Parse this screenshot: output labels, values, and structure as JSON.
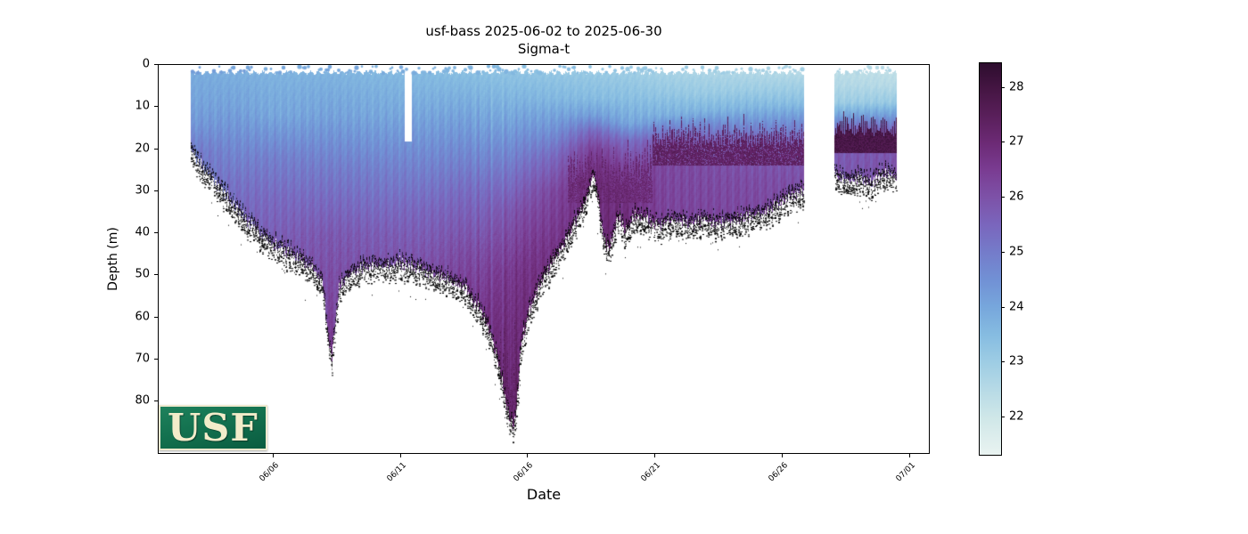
{
  "title": {
    "line1": "usf-bass 2025-06-02 to 2025-06-30",
    "line2": "Sigma-t"
  },
  "axes": {
    "xlabel": "Date",
    "ylabel": "Depth (m)",
    "x_ticks": [
      {
        "day": 4,
        "label": "06/06"
      },
      {
        "day": 9,
        "label": "06/11"
      },
      {
        "day": 14,
        "label": "06/16"
      },
      {
        "day": 19,
        "label": "06/21"
      },
      {
        "day": 24,
        "label": "06/26"
      },
      {
        "day": 29,
        "label": "07/01"
      }
    ],
    "y_ticks": [
      {
        "m": 0,
        "label": "0"
      },
      {
        "m": 10,
        "label": "10"
      },
      {
        "m": 20,
        "label": "20"
      },
      {
        "m": 30,
        "label": "30"
      },
      {
        "m": 40,
        "label": "40"
      },
      {
        "m": 50,
        "label": "50"
      },
      {
        "m": 60,
        "label": "60"
      },
      {
        "m": 70,
        "label": "70"
      },
      {
        "m": 80,
        "label": "80"
      }
    ],
    "depth_axis_max_m": 92.7
  },
  "colorbar": {
    "range": [
      21.32,
      28.45
    ],
    "ticks": [
      {
        "v": 22,
        "label": "22"
      },
      {
        "v": 23,
        "label": "23"
      },
      {
        "v": 24,
        "label": "24"
      },
      {
        "v": 25,
        "label": "25"
      },
      {
        "v": 26,
        "label": "26"
      },
      {
        "v": 27,
        "label": "27"
      },
      {
        "v": 28,
        "label": "28"
      }
    ],
    "stops": [
      [
        21.32,
        "#e9f3f1"
      ],
      [
        22.0,
        "#cfe7e8"
      ],
      [
        22.5,
        "#b7dae6"
      ],
      [
        23.0,
        "#9ecde4"
      ],
      [
        23.5,
        "#86bce1"
      ],
      [
        24.0,
        "#77a7dc"
      ],
      [
        24.5,
        "#7191d5"
      ],
      [
        25.0,
        "#747cca"
      ],
      [
        25.5,
        "#7a66bd"
      ],
      [
        26.0,
        "#7d52a8"
      ],
      [
        26.5,
        "#7a3c92"
      ],
      [
        27.0,
        "#6c2a75"
      ],
      [
        27.5,
        "#591f5a"
      ],
      [
        28.0,
        "#441542"
      ],
      [
        28.45,
        "#2d0d2e"
      ]
    ]
  },
  "logo": {
    "text": "USF"
  },
  "chart_data": {
    "type": "scatter",
    "platform": "usf-bass",
    "variable": "Sigma-t",
    "date_start": "2025-06-02",
    "date_end": "2025-06-30",
    "day0_date": "06/02",
    "data_day_start": 0.75,
    "data_day_end": 28.5,
    "surface_top_m": 1.9,
    "gaps_full_days": [
      [
        24.85,
        26.05
      ]
    ],
    "gaps_upper_days": [
      {
        "from": 9.18,
        "to": 9.44,
        "min_depth_m": 18.3
      }
    ],
    "bathymetry_day_depth": [
      [
        0.75,
        20
      ],
      [
        1.2,
        24
      ],
      [
        2,
        30
      ],
      [
        2.8,
        36
      ],
      [
        3.6,
        41
      ],
      [
        4.4,
        44
      ],
      [
        5,
        46
      ],
      [
        5.6,
        49
      ],
      [
        5.95,
        52
      ],
      [
        6.15,
        64
      ],
      [
        6.3,
        70
      ],
      [
        6.45,
        62
      ],
      [
        6.6,
        53
      ],
      [
        7,
        50
      ],
      [
        7.6,
        48
      ],
      [
        8.4,
        48
      ],
      [
        9,
        47
      ],
      [
        9.44,
        48
      ],
      [
        10,
        49
      ],
      [
        10.8,
        51
      ],
      [
        11.5,
        53
      ],
      [
        12,
        57
      ],
      [
        12.5,
        63
      ],
      [
        12.9,
        72
      ],
      [
        13.2,
        82
      ],
      [
        13.45,
        86
      ],
      [
        13.6,
        80
      ],
      [
        13.75,
        66
      ],
      [
        14.1,
        58
      ],
      [
        14.5,
        52
      ],
      [
        15,
        47
      ],
      [
        15.5,
        42
      ],
      [
        16,
        36
      ],
      [
        16.35,
        31
      ],
      [
        16.6,
        26
      ],
      [
        16.8,
        33
      ],
      [
        17,
        42
      ],
      [
        17.25,
        44
      ],
      [
        17.45,
        38
      ],
      [
        17.65,
        36
      ],
      [
        17.85,
        40
      ],
      [
        18.2,
        36
      ],
      [
        18.6,
        37
      ],
      [
        19.2,
        38
      ],
      [
        19.8,
        37
      ],
      [
        20.4,
        38
      ],
      [
        21,
        37
      ],
      [
        21.6,
        38
      ],
      [
        22.2,
        37
      ],
      [
        22.8,
        36
      ],
      [
        23.4,
        35
      ],
      [
        24,
        33
      ],
      [
        24.5,
        31
      ],
      [
        24.85,
        30
      ],
      [
        26.05,
        26
      ],
      [
        26.5,
        28
      ],
      [
        27,
        27
      ],
      [
        27.5,
        28
      ],
      [
        28,
        26
      ],
      [
        28.5,
        27
      ]
    ],
    "sigma_profiles": [
      [
        0.75,
        [
          [
            2,
            23.9
          ],
          [
            8,
            24.05
          ],
          [
            14,
            24.35
          ],
          [
            18,
            24.8
          ],
          [
            21,
            25.1
          ]
        ]
      ],
      [
        2.5,
        [
          [
            2,
            23.8
          ],
          [
            10,
            24.1
          ],
          [
            20,
            24.7
          ],
          [
            28,
            25.2
          ],
          [
            36,
            25.5
          ]
        ]
      ],
      [
        4,
        [
          [
            2,
            23.7
          ],
          [
            12,
            24.0
          ],
          [
            22,
            24.9
          ],
          [
            32,
            25.4
          ],
          [
            44,
            25.8
          ]
        ]
      ],
      [
        6.2,
        [
          [
            2,
            23.7
          ],
          [
            12,
            24.1
          ],
          [
            25,
            25.0
          ],
          [
            40,
            25.8
          ],
          [
            55,
            26.2
          ],
          [
            70,
            26.5
          ]
        ]
      ],
      [
        8,
        [
          [
            2,
            23.6
          ],
          [
            12,
            24.0
          ],
          [
            25,
            24.9
          ],
          [
            40,
            25.7
          ],
          [
            49,
            26.0
          ]
        ]
      ],
      [
        10,
        [
          [
            2,
            23.5
          ],
          [
            10,
            23.9
          ],
          [
            22,
            24.7
          ],
          [
            35,
            25.5
          ],
          [
            50,
            26.1
          ]
        ]
      ],
      [
        12,
        [
          [
            2,
            23.4
          ],
          [
            8,
            23.8
          ],
          [
            18,
            24.5
          ],
          [
            30,
            25.4
          ],
          [
            45,
            26.2
          ],
          [
            60,
            26.8
          ]
        ]
      ],
      [
        13.4,
        [
          [
            2,
            23.3
          ],
          [
            8,
            23.7
          ],
          [
            15,
            24.3
          ],
          [
            25,
            25.2
          ],
          [
            35,
            26.0
          ],
          [
            50,
            26.7
          ],
          [
            65,
            27.0
          ],
          [
            86,
            27.3
          ]
        ]
      ],
      [
        15,
        [
          [
            2,
            23.2
          ],
          [
            8,
            23.6
          ],
          [
            15,
            24.4
          ],
          [
            22,
            25.4
          ],
          [
            30,
            26.2
          ],
          [
            46,
            26.8
          ]
        ]
      ],
      [
        16.6,
        [
          [
            2,
            23.1
          ],
          [
            8,
            23.5
          ],
          [
            12,
            24.2
          ],
          [
            16,
            25.5
          ],
          [
            20,
            26.4
          ],
          [
            26,
            26.9
          ]
        ]
      ],
      [
        18,
        [
          [
            2,
            23.0
          ],
          [
            8,
            23.4
          ],
          [
            14,
            24.0
          ],
          [
            18,
            25.3
          ],
          [
            24,
            26.3
          ],
          [
            30,
            26.7
          ],
          [
            38,
            26.9
          ]
        ]
      ],
      [
        19.5,
        [
          [
            2,
            22.8
          ],
          [
            7,
            23.2
          ],
          [
            12,
            23.8
          ],
          [
            15,
            24.8
          ],
          [
            19,
            25.9
          ],
          [
            24,
            26.2
          ],
          [
            38,
            26.3
          ]
        ]
      ],
      [
        21,
        [
          [
            2,
            22.7
          ],
          [
            7,
            23.1
          ],
          [
            11,
            23.7
          ],
          [
            14,
            24.6
          ],
          [
            18,
            25.6
          ],
          [
            24,
            26.1
          ],
          [
            38,
            26.3
          ]
        ]
      ],
      [
        23,
        [
          [
            2,
            22.6
          ],
          [
            6,
            23.0
          ],
          [
            10,
            23.6
          ],
          [
            14,
            24.5
          ],
          [
            20,
            25.8
          ],
          [
            28,
            26.1
          ],
          [
            36,
            26.2
          ]
        ]
      ],
      [
        24.85,
        [
          [
            2,
            22.5
          ],
          [
            5,
            22.9
          ],
          [
            9,
            23.4
          ],
          [
            13,
            24.4
          ],
          [
            18,
            25.5
          ],
          [
            24,
            25.9
          ],
          [
            30,
            26.1
          ]
        ]
      ],
      [
        26.05,
        [
          [
            2,
            22.4
          ],
          [
            5,
            22.6
          ],
          [
            9,
            23.0
          ],
          [
            12,
            24.0
          ],
          [
            15,
            25.2
          ],
          [
            18,
            25.7
          ],
          [
            28,
            25.9
          ]
        ]
      ],
      [
        28.5,
        [
          [
            2,
            22.3
          ],
          [
            5,
            22.5
          ],
          [
            9,
            23.1
          ],
          [
            12,
            24.2
          ],
          [
            15,
            25.3
          ],
          [
            18,
            25.8
          ],
          [
            27,
            26.0
          ]
        ]
      ]
    ],
    "dense_streaks": [
      {
        "from": 12.4,
        "to": 14.2,
        "top": 55,
        "bottom": 86,
        "sigma": 27.4,
        "strength": 0.3,
        "freq": 7
      },
      {
        "from": 15.6,
        "to": 18.9,
        "top": 17,
        "bottom": 30,
        "sigma": 27.1,
        "strength": 0.45,
        "freq": 9
      },
      {
        "from": 18.9,
        "to": 24.85,
        "top": 11,
        "bottom": 21,
        "sigma": 27.4,
        "strength": 0.55,
        "freq": 11
      },
      {
        "from": 26.05,
        "to": 28.5,
        "top": 10,
        "bottom": 18,
        "sigma": 27.9,
        "strength": 0.8,
        "freq": 13
      }
    ],
    "seafloor_speckle_color": "#000000",
    "surface_dot_depth_m": [
      0.5,
      2.2
    ]
  }
}
